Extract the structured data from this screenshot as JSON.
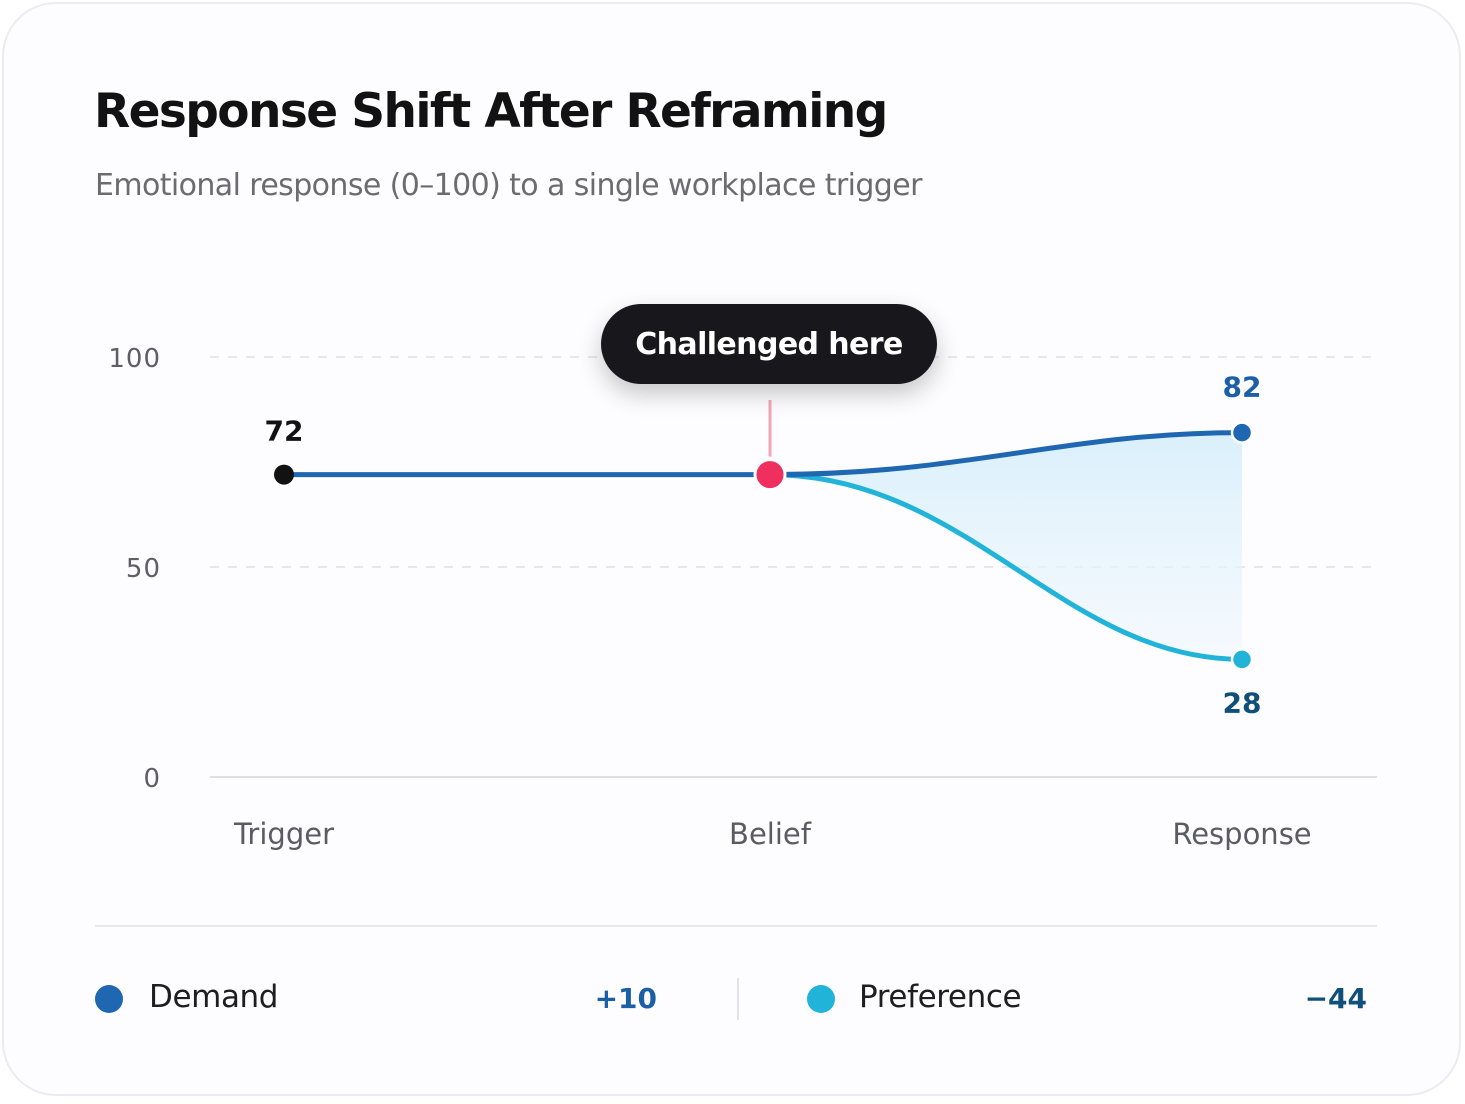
{
  "card": {
    "title": "Response Shift After Reframing",
    "subtitle": "Emotional response (0–100) to a single workplace trigger"
  },
  "chart_data": {
    "type": "line",
    "categories": [
      "Trigger",
      "Belief",
      "Response"
    ],
    "ylim": [
      0,
      100
    ],
    "yticks": [
      "0",
      "50",
      "100"
    ],
    "grid": true,
    "start_label": "72",
    "annotation": {
      "label": "Challenged here",
      "category": "Belief",
      "value": 72
    },
    "series": [
      {
        "name": "Demand",
        "values": [
          72,
          72,
          82
        ],
        "end_label": "82",
        "delta": "+10",
        "color": "#1f67b1",
        "label_color": "#1b5fa6"
      },
      {
        "name": "Preference",
        "values": [
          72,
          72,
          28
        ],
        "end_label": "28",
        "delta": "−44",
        "color": "#22b3d8",
        "label_color": "#0f4f7a"
      }
    ],
    "colors": {
      "start_point": "#121212",
      "belief_point": "#ef2f5d",
      "connector": "#f4a6b6",
      "band_fill": "#d6eefa"
    }
  }
}
